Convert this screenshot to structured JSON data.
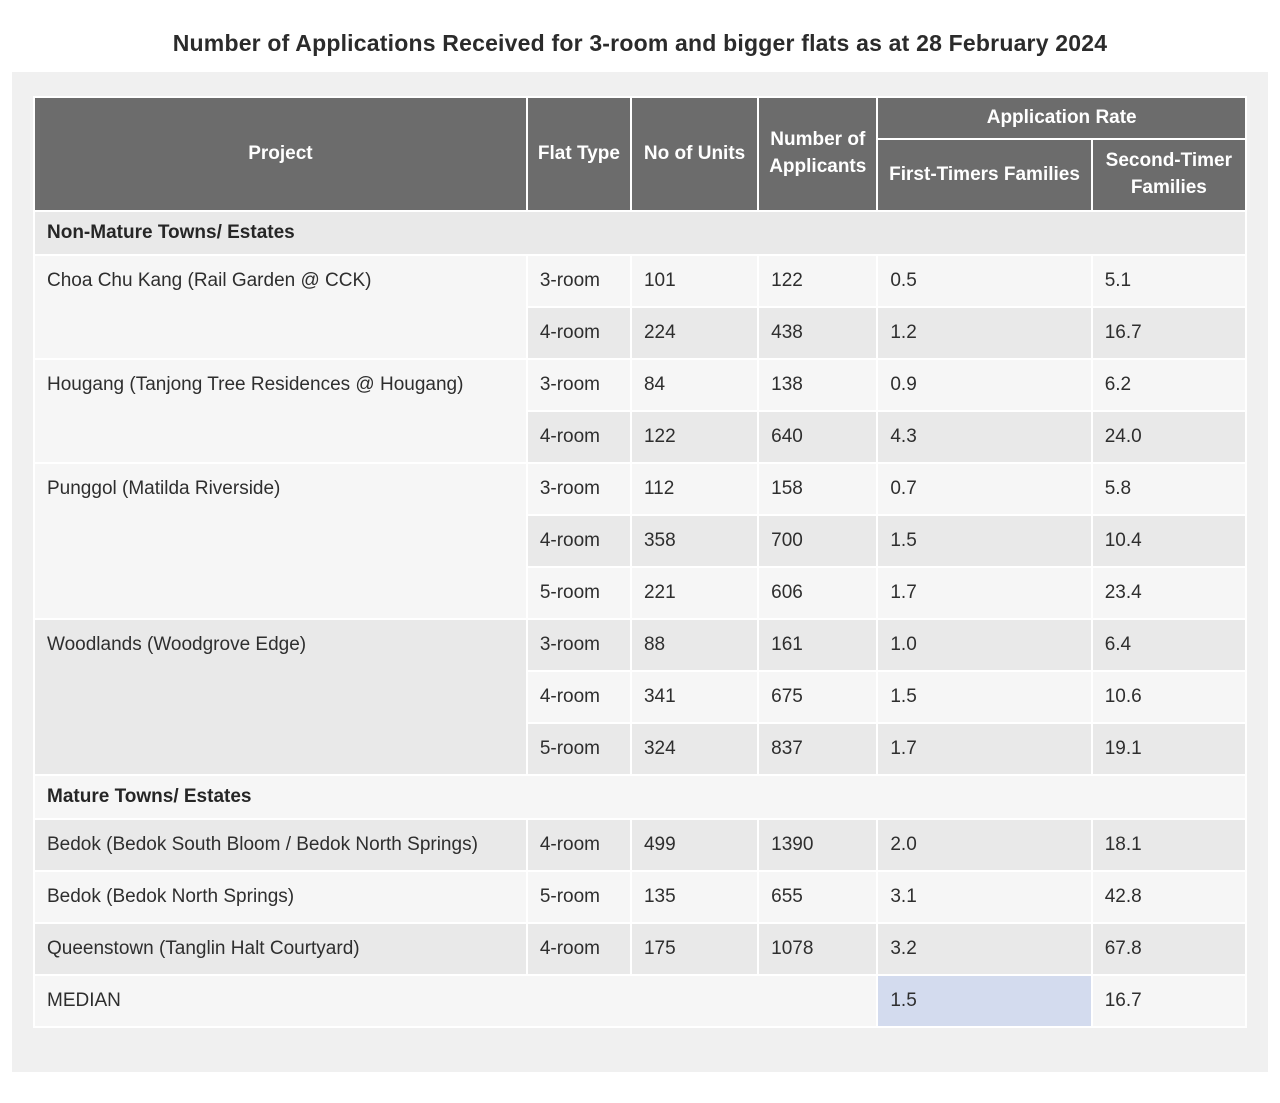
{
  "title": "Number of Applications Received for 3-room and bigger flats as at 28 February 2024",
  "table": {
    "columns": {
      "project": "Project",
      "flat_type": "Flat Type",
      "units": "No of Units",
      "applicants": "Number of Applicants"
    },
    "application_rate": "Application Rate",
    "subcolumns": {
      "first": "First-Timers Families",
      "second": "Second-Timer Families"
    },
    "sections": [
      {
        "label": "Non-Mature Towns/ Estates",
        "projects": [
          {
            "name": "Choa Chu Kang (Rail Garden @ CCK)",
            "rows": [
              {
                "flat_type": "3-room",
                "units": "101",
                "applicants": "122",
                "first_timer_rate": "0.5",
                "second_timer_rate": "5.1"
              },
              {
                "flat_type": "4-room",
                "units": "224",
                "applicants": "438",
                "first_timer_rate": "1.2",
                "second_timer_rate": "16.7"
              }
            ]
          },
          {
            "name": "Hougang (Tanjong Tree Residences @ Hougang)",
            "rows": [
              {
                "flat_type": "3-room",
                "units": "84",
                "applicants": "138",
                "first_timer_rate": "0.9",
                "second_timer_rate": "6.2"
              },
              {
                "flat_type": "4-room",
                "units": "122",
                "applicants": "640",
                "first_timer_rate": "4.3",
                "second_timer_rate": "24.0"
              }
            ]
          },
          {
            "name": "Punggol (Matilda Riverside)",
            "rows": [
              {
                "flat_type": "3-room",
                "units": "112",
                "applicants": "158",
                "first_timer_rate": "0.7",
                "second_timer_rate": "5.8"
              },
              {
                "flat_type": "4-room",
                "units": "358",
                "applicants": "700",
                "first_timer_rate": "1.5",
                "second_timer_rate": "10.4"
              },
              {
                "flat_type": "5-room",
                "units": "221",
                "applicants": "606",
                "first_timer_rate": "1.7",
                "second_timer_rate": "23.4"
              }
            ]
          },
          {
            "name": "Woodlands (Woodgrove Edge)",
            "rows": [
              {
                "flat_type": "3-room",
                "units": "88",
                "applicants": "161",
                "first_timer_rate": "1.0",
                "second_timer_rate": "6.4"
              },
              {
                "flat_type": "4-room",
                "units": "341",
                "applicants": "675",
                "first_timer_rate": "1.5",
                "second_timer_rate": "10.6"
              },
              {
                "flat_type": "5-room",
                "units": "324",
                "applicants": "837",
                "first_timer_rate": "1.7",
                "second_timer_rate": "19.1"
              }
            ]
          }
        ]
      },
      {
        "label": "Mature Towns/ Estates",
        "projects": [
          {
            "name": "Bedok (Bedok South Bloom / Bedok North Springs)",
            "rows": [
              {
                "flat_type": "4-room",
                "units": "499",
                "applicants": "1390",
                "first_timer_rate": "2.0",
                "second_timer_rate": "18.1"
              }
            ]
          },
          {
            "name": "Bedok (Bedok North Springs)",
            "rows": [
              {
                "flat_type": "5-room",
                "units": "135",
                "applicants": "655",
                "first_timer_rate": "3.1",
                "second_timer_rate": "42.8"
              }
            ]
          },
          {
            "name": "Queenstown (Tanglin Halt Courtyard)",
            "rows": [
              {
                "flat_type": "4-room",
                "units": "175",
                "applicants": "1078",
                "first_timer_rate": "3.2",
                "second_timer_rate": "67.8"
              }
            ]
          }
        ]
      }
    ],
    "median": {
      "label": "MEDIAN",
      "first_timer_rate": "1.5",
      "second_timer_rate": "16.7"
    }
  },
  "colors": {
    "header_bg": "#6c6c6c",
    "header_text": "#ffffff",
    "application_rate_accent": "#be2e3c",
    "row_dark": "#e9e9e9",
    "row_light": "#f6f6f6",
    "container_bg": "#f0f0f0",
    "median_highlight": "#d3dbee",
    "body_text": "#2e2e2e"
  }
}
